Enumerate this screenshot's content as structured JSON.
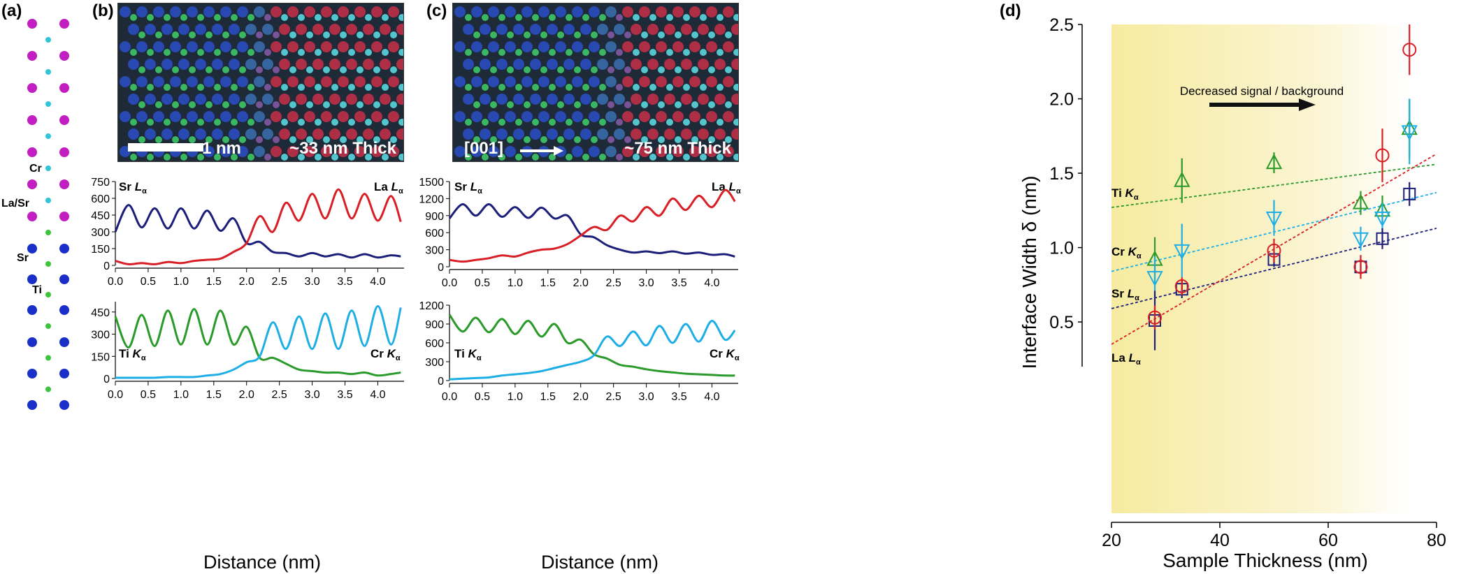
{
  "panels": {
    "a": "(a)",
    "b": "(b)",
    "c": "(c)",
    "d": "(d)"
  },
  "structure": {
    "labels": [
      "Cr",
      "La/Sr",
      "Sr",
      "Ti"
    ]
  },
  "image_b": {
    "scalebar_label": "1 nm",
    "thickness_label": "~33 nm Thick"
  },
  "image_c": {
    "direction_label": "[001]",
    "thickness_label": "~75 nm Thick"
  },
  "profiles": {
    "xlabel": "Distance (nm)",
    "x_ticks": [
      "0.0",
      "0.5",
      "1.0",
      "1.5",
      "2.0",
      "2.5",
      "3.0",
      "3.5",
      "4.0"
    ],
    "b_top": {
      "y_ticks": [
        "0",
        "150",
        "300",
        "450",
        "600",
        "750"
      ],
      "left_label": "Sr",
      "right_label": "La",
      "sub": "α",
      "italic": "L"
    },
    "b_bottom": {
      "y_ticks": [
        "0",
        "150",
        "300",
        "450"
      ],
      "left_label": "Ti",
      "right_label": "Cr",
      "sub": "α",
      "italic": "K"
    },
    "c_top": {
      "y_ticks": [
        "0",
        "300",
        "600",
        "900",
        "1200",
        "1500"
      ],
      "left_label": "Sr",
      "right_label": "La",
      "sub": "α",
      "italic": "L"
    },
    "c_bottom": {
      "y_ticks": [
        "0",
        "300",
        "600",
        "900",
        "1200"
      ],
      "left_label": "Ti",
      "right_label": "Cr",
      "sub": "α",
      "italic": "K"
    }
  },
  "chart_data": [
    {
      "type": "line",
      "panel": "b-top",
      "xlabel": "Distance (nm)",
      "ylabel": "",
      "xlim": [
        0,
        4.4
      ],
      "ylim": [
        0,
        750
      ],
      "series": [
        {
          "name": "Sr Lα",
          "color": "#1c1f7a",
          "x": [
            0.0,
            0.2,
            0.4,
            0.6,
            0.8,
            1.0,
            1.2,
            1.4,
            1.6,
            1.8,
            2.0,
            2.2,
            2.4,
            2.6,
            2.8,
            3.0,
            3.2,
            3.4,
            3.6,
            3.8,
            4.0,
            4.2,
            4.35
          ],
          "y": [
            300,
            540,
            340,
            510,
            330,
            510,
            330,
            490,
            310,
            420,
            200,
            210,
            120,
            110,
            80,
            110,
            80,
            100,
            70,
            100,
            70,
            90,
            80
          ]
        },
        {
          "name": "La Lα",
          "color": "#d91f26",
          "x": [
            0.0,
            0.2,
            0.4,
            0.6,
            0.8,
            1.0,
            1.2,
            1.4,
            1.6,
            1.8,
            2.0,
            2.2,
            2.4,
            2.6,
            2.8,
            3.0,
            3.2,
            3.4,
            3.6,
            3.8,
            4.0,
            4.2,
            4.35
          ],
          "y": [
            40,
            10,
            20,
            10,
            30,
            20,
            40,
            50,
            60,
            120,
            200,
            440,
            300,
            560,
            400,
            640,
            420,
            680,
            420,
            640,
            400,
            620,
            390
          ]
        }
      ]
    },
    {
      "type": "line",
      "panel": "b-bottom",
      "xlabel": "Distance (nm)",
      "ylabel": "",
      "xlim": [
        0,
        4.4
      ],
      "ylim": [
        0,
        520
      ],
      "series": [
        {
          "name": "Ti Kα",
          "color": "#2a9a2a",
          "x": [
            0.0,
            0.2,
            0.4,
            0.6,
            0.8,
            1.0,
            1.2,
            1.4,
            1.6,
            1.8,
            2.0,
            2.2,
            2.4,
            2.6,
            2.8,
            3.0,
            3.2,
            3.4,
            3.6,
            3.8,
            4.0,
            4.2,
            4.35
          ],
          "y": [
            420,
            210,
            430,
            220,
            460,
            230,
            470,
            230,
            460,
            230,
            350,
            140,
            140,
            100,
            60,
            50,
            40,
            40,
            30,
            40,
            20,
            30,
            40
          ]
        },
        {
          "name": "Cr Kα",
          "color": "#1eaee6",
          "x": [
            0.0,
            0.2,
            0.4,
            0.6,
            0.8,
            1.0,
            1.2,
            1.4,
            1.6,
            1.8,
            2.0,
            2.2,
            2.4,
            2.6,
            2.8,
            3.0,
            3.2,
            3.4,
            3.6,
            3.8,
            4.0,
            4.2,
            4.35
          ],
          "y": [
            5,
            5,
            5,
            5,
            10,
            10,
            10,
            20,
            30,
            60,
            110,
            150,
            380,
            200,
            420,
            200,
            440,
            200,
            460,
            220,
            490,
            230,
            480
          ]
        }
      ]
    },
    {
      "type": "line",
      "panel": "c-top",
      "xlabel": "Distance (nm)",
      "ylabel": "",
      "xlim": [
        0,
        4.4
      ],
      "ylim": [
        0,
        1500
      ],
      "series": [
        {
          "name": "Sr Lα",
          "color": "#1c1f7a",
          "x": [
            0.0,
            0.2,
            0.4,
            0.6,
            0.8,
            1.0,
            1.2,
            1.4,
            1.6,
            1.8,
            2.0,
            2.2,
            2.4,
            2.6,
            2.8,
            3.0,
            3.2,
            3.4,
            3.6,
            3.8,
            4.0,
            4.2,
            4.35
          ],
          "y": [
            850,
            1100,
            900,
            1100,
            880,
            1050,
            860,
            1040,
            850,
            900,
            570,
            520,
            380,
            300,
            250,
            270,
            240,
            270,
            230,
            250,
            210,
            220,
            180
          ]
        },
        {
          "name": "La Lα",
          "color": "#d91f26",
          "x": [
            0.0,
            0.2,
            0.4,
            0.6,
            0.8,
            1.0,
            1.2,
            1.4,
            1.6,
            1.8,
            2.0,
            2.2,
            2.4,
            2.6,
            2.8,
            3.0,
            3.2,
            3.4,
            3.6,
            3.8,
            4.0,
            4.2,
            4.35
          ],
          "y": [
            120,
            90,
            120,
            150,
            200,
            180,
            250,
            300,
            320,
            400,
            550,
            700,
            650,
            900,
            800,
            1050,
            900,
            1200,
            1000,
            1250,
            1050,
            1350,
            1150
          ]
        }
      ]
    },
    {
      "type": "line",
      "panel": "c-bottom",
      "xlabel": "Distance (nm)",
      "ylabel": "",
      "xlim": [
        0,
        4.4
      ],
      "ylim": [
        0,
        1200
      ],
      "series": [
        {
          "name": "Ti Kα",
          "color": "#2a9a2a",
          "x": [
            0.0,
            0.2,
            0.4,
            0.6,
            0.8,
            1.0,
            1.2,
            1.4,
            1.6,
            1.8,
            2.0,
            2.2,
            2.4,
            2.6,
            2.8,
            3.0,
            3.2,
            3.4,
            3.6,
            3.8,
            4.0,
            4.2,
            4.35
          ],
          "y": [
            1050,
            780,
            1000,
            770,
            980,
            740,
            950,
            700,
            900,
            600,
            650,
            420,
            350,
            250,
            220,
            180,
            150,
            130,
            110,
            100,
            90,
            80,
            80
          ]
        },
        {
          "name": "Cr Kα",
          "color": "#1eaee6",
          "x": [
            0.0,
            0.2,
            0.4,
            0.6,
            0.8,
            1.0,
            1.2,
            1.4,
            1.6,
            1.8,
            2.0,
            2.2,
            2.4,
            2.6,
            2.8,
            3.0,
            3.2,
            3.4,
            3.6,
            3.8,
            4.0,
            4.2,
            4.35
          ],
          "y": [
            20,
            30,
            40,
            50,
            80,
            100,
            120,
            150,
            200,
            250,
            300,
            400,
            700,
            550,
            780,
            560,
            870,
            600,
            900,
            620,
            950,
            650,
            800
          ]
        }
      ]
    },
    {
      "type": "scatter",
      "panel": "d",
      "xlabel": "Sample Thickness (nm)",
      "ylabel": "Interface Width δ (nm)",
      "xlim": [
        20,
        80
      ],
      "ylim": [
        0.2,
        2.5
      ],
      "x_ticks": [
        "20",
        "40",
        "60",
        "80"
      ],
      "y_ticks": [
        "0.5",
        "1.0",
        "1.5",
        "2.0",
        "2.5"
      ],
      "annotation": "Decreased signal / background",
      "series": [
        {
          "name": "Ti Kα",
          "marker": "triangle-up",
          "color": "#2a9a2a",
          "x": [
            28,
            33,
            50,
            66,
            70,
            75
          ],
          "y": [
            0.92,
            1.45,
            1.57,
            1.3,
            1.25,
            1.8
          ],
          "err": [
            0.15,
            0.15,
            0.07,
            0.08,
            0.1,
            0.2
          ],
          "fit": [
            [
              20,
              1.27
            ],
            [
              80,
              1.56
            ]
          ]
        },
        {
          "name": "Cr Kα",
          "marker": "triangle-down",
          "color": "#1eaee6",
          "x": [
            28,
            33,
            50,
            66,
            70,
            75
          ],
          "y": [
            0.8,
            0.98,
            1.2,
            1.06,
            1.2,
            1.78
          ],
          "err": [
            0.14,
            0.18,
            0.12,
            0.08,
            0.1,
            0.22
          ],
          "fit": [
            [
              20,
              0.84
            ],
            [
              80,
              1.37
            ]
          ]
        },
        {
          "name": "Sr Lα",
          "marker": "square",
          "color": "#1c1f7a",
          "x": [
            28,
            33,
            50,
            66,
            70,
            75
          ],
          "y": [
            0.51,
            0.72,
            0.92,
            0.87,
            1.06,
            1.36
          ],
          "err": [
            0.2,
            0.06,
            0.05,
            0.05,
            0.07,
            0.08
          ],
          "fit": [
            [
              20,
              0.59
            ],
            [
              80,
              1.13
            ]
          ]
        },
        {
          "name": "La Lα",
          "marker": "circle",
          "color": "#d91f26",
          "x": [
            28,
            33,
            50,
            66,
            70,
            75
          ],
          "y": [
            0.53,
            0.74,
            0.98,
            0.87,
            1.62,
            2.33
          ],
          "err": [
            0.08,
            0.06,
            0.08,
            0.08,
            0.18,
            0.17
          ],
          "fit": [
            [
              20,
              0.35
            ],
            [
              80,
              1.63
            ]
          ]
        }
      ]
    }
  ]
}
